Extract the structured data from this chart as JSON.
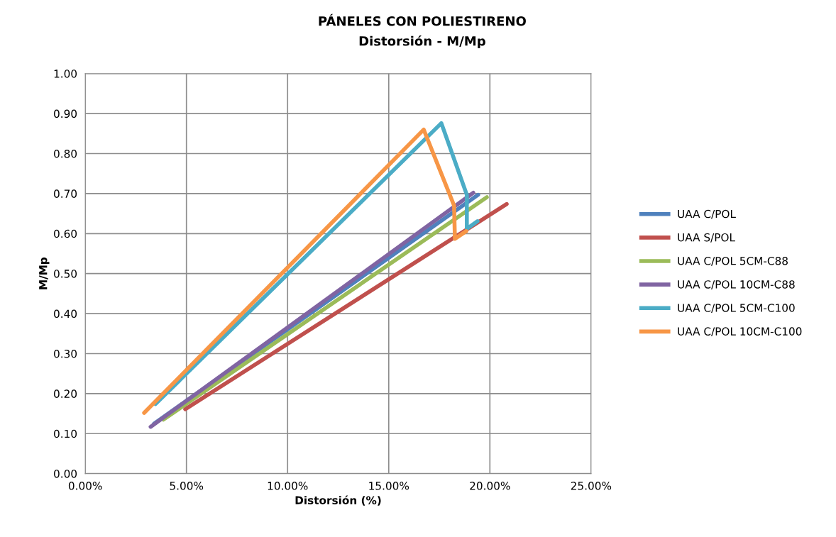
{
  "chart_data": {
    "type": "line",
    "title": "PÁNELES CON POLIESTIRENO",
    "subtitle": "Distorsión - M/Mp",
    "xlabel": "Distorsión (%)",
    "ylabel": "M/Mp",
    "series": [
      {
        "name": "UAA C/POL",
        "color": "#4f81bd",
        "x": [
          3.4,
          19.42
        ],
        "values": [
          0.125,
          0.697
        ]
      },
      {
        "name": "UAA S/POL",
        "color": "#c0504d",
        "x": [
          4.94,
          20.83
        ],
        "values": [
          0.161,
          0.674
        ]
      },
      {
        "name": "UAA C/POL 5CM-C88",
        "color": "#9bbb59",
        "x": [
          3.86,
          19.85
        ],
        "values": [
          0.135,
          0.691
        ]
      },
      {
        "name": "UAA C/POL 10CM-C88",
        "color": "#8064a2",
        "x": [
          3.23,
          19.18
        ],
        "values": [
          0.117,
          0.702
        ]
      },
      {
        "name": "UAA C/POL 5CM-C100",
        "color": "#4bacc6",
        "x": [
          3.47,
          17.6,
          18.86,
          18.86,
          19.39
        ],
        "values": [
          0.174,
          0.876,
          0.697,
          0.612,
          0.631
        ]
      },
      {
        "name": "UAA C/POL 10CM-C100",
        "color": "#f79646",
        "x": [
          2.91,
          16.73,
          18.23,
          18.27,
          18.83
        ],
        "values": [
          0.152,
          0.86,
          0.67,
          0.587,
          0.606
        ]
      }
    ],
    "xlim": [
      0,
      25
    ],
    "xticks": [
      {
        "value": 0,
        "label": "0.00%"
      },
      {
        "value": 5,
        "label": "5.00%"
      },
      {
        "value": 10,
        "label": "10.00%"
      },
      {
        "value": 15,
        "label": "15.00%"
      },
      {
        "value": 20,
        "label": "20.00%"
      },
      {
        "value": 25,
        "label": "25.00%"
      }
    ],
    "ylim": [
      0,
      1
    ],
    "yticks": [
      {
        "value": 0,
        "label": "0.00"
      },
      {
        "value": 0.1,
        "label": "0.10"
      },
      {
        "value": 0.2,
        "label": "0.20"
      },
      {
        "value": 0.3,
        "label": "0.30"
      },
      {
        "value": 0.4,
        "label": "0.40"
      },
      {
        "value": 0.5,
        "label": "0.50"
      },
      {
        "value": 0.6,
        "label": "0.60"
      },
      {
        "value": 0.7,
        "label": "0.70"
      },
      {
        "value": 0.8,
        "label": "0.80"
      },
      {
        "value": 0.9,
        "label": "0.90"
      },
      {
        "value": 1.0,
        "label": "1.00"
      }
    ],
    "grid": true,
    "legend": "right",
    "marker": "none",
    "line_style": "solid"
  }
}
